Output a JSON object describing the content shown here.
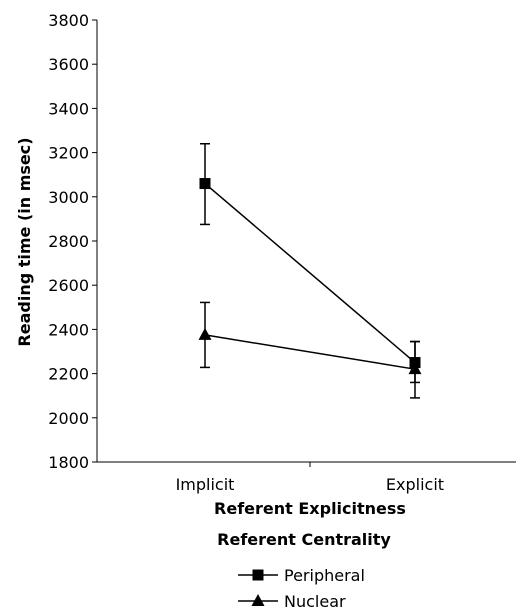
{
  "chart_data": {
    "type": "line",
    "categories": [
      "Implicit",
      "Explicit"
    ],
    "series": [
      {
        "name": "Peripheral",
        "marker": "square",
        "values": [
          3060,
          2250
        ],
        "error_low": [
          2875,
          2160
        ],
        "error_high": [
          3240,
          2345
        ]
      },
      {
        "name": "Nuclear",
        "marker": "triangle",
        "values": [
          2375,
          2220
        ],
        "error_low": [
          2228,
          2090
        ],
        "error_high": [
          2522,
          2345
        ]
      }
    ],
    "ylim": [
      1800,
      3800
    ],
    "yticks": [
      1800,
      2000,
      2200,
      2400,
      2600,
      2800,
      3000,
      3200,
      3400,
      3600,
      3800
    ],
    "ylabel": "Reading time (in msec)",
    "xlabel": "Referent Explicitness",
    "legend_title": "Referent Centrality",
    "legend_position": "bottom",
    "grid": false,
    "line_color": "#000000"
  }
}
